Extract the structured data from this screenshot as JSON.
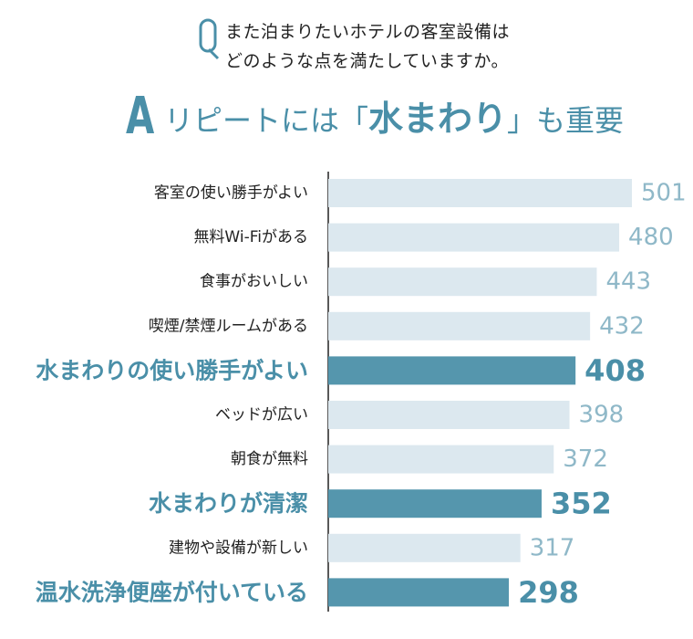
{
  "question": {
    "line1": "また泊まりたいホテルの客室設備は",
    "line2": "どのような点を満たしていますか。",
    "icon": "q-letter-icon"
  },
  "answer": {
    "letter": "A",
    "prefix": "リピートには「",
    "highlight": "水まわり",
    "suffix": "」も重要"
  },
  "colors": {
    "accent": "#4a8fa8",
    "highlight_bar": "#5596ad",
    "normal_bar": "#dce8ef",
    "normal_value": "#8fb8c8",
    "label": "#222222"
  },
  "chart_data": {
    "type": "bar",
    "orientation": "horizontal",
    "categories": [
      "客室の使い勝手がよい",
      "無料Wi-Fiがある",
      "食事がおいしい",
      "喫煙/禁煙ルームがある",
      "水まわりの使い勝手がよい",
      "ベッドが広い",
      "朝食が無料",
      "水まわりが清潔",
      "建物や設備が新しい",
      "温水洗浄便座が付いている"
    ],
    "values": [
      501,
      480,
      443,
      432,
      408,
      398,
      372,
      352,
      317,
      298
    ],
    "highlighted": [
      false,
      false,
      false,
      false,
      true,
      false,
      false,
      true,
      false,
      true
    ],
    "xlim": [
      0,
      520
    ]
  }
}
